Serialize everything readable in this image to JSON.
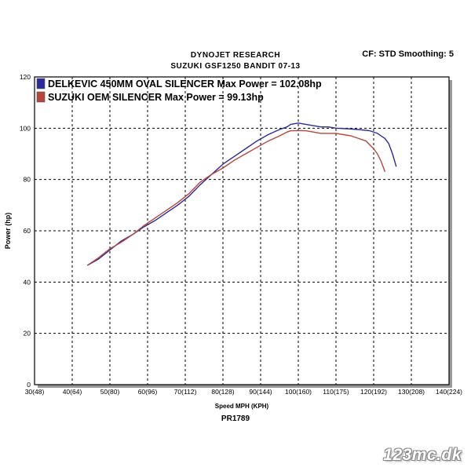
{
  "header": {
    "title": "DYNOJET RESEARCH",
    "subtitle": "SUZUKI GSF1250 BANDIT 07-13",
    "settings": "CF: STD  Smoothing: 5"
  },
  "footer": {
    "run_id": "PR1789",
    "watermark": "123mc.dk"
  },
  "colors": {
    "series_blue": "#2a2a9c",
    "series_red": "#b8453a",
    "grid": "#000000"
  },
  "chart_data": {
    "type": "line",
    "xlabel": "Speed MPH (KPH)",
    "ylabel": "Power (hp)",
    "xlim": [
      30,
      140
    ],
    "ylim": [
      0,
      120
    ],
    "x_ticks": [
      {
        "value": 30,
        "label": "30(48)"
      },
      {
        "value": 40,
        "label": "40(64)"
      },
      {
        "value": 50,
        "label": "50(80)"
      },
      {
        "value": 60,
        "label": "60(96)"
      },
      {
        "value": 70,
        "label": "70(112)"
      },
      {
        "value": 80,
        "label": "80(128)"
      },
      {
        "value": 90,
        "label": "90(144)"
      },
      {
        "value": 100,
        "label": "100(160)"
      },
      {
        "value": 110,
        "label": "110(175)"
      },
      {
        "value": 120,
        "label": "120(192)"
      },
      {
        "value": 130,
        "label": "130(208)"
      },
      {
        "value": 140,
        "label": "140(224)"
      }
    ],
    "y_ticks": [
      0,
      20,
      40,
      60,
      80,
      100,
      120
    ],
    "grid": true,
    "legend_position": "top-left",
    "series": [
      {
        "name": "DELKEVIC 450MM OVAL SILENCER Max Power  = 102.08hp",
        "color": "#2a2a9c",
        "x": [
          44,
          47,
          50,
          53,
          56,
          59,
          62,
          65,
          68,
          71,
          74,
          77,
          80,
          83,
          86,
          89,
          92,
          95,
          97,
          98,
          100,
          102,
          104,
          106,
          108,
          110,
          113,
          116,
          119,
          121,
          123,
          124,
          125,
          126
        ],
        "y": [
          46.5,
          49,
          52.5,
          56,
          58.5,
          61.5,
          64,
          67,
          70,
          73.5,
          78,
          82,
          86,
          89,
          92,
          95,
          97.5,
          99.5,
          100.5,
          101.5,
          102,
          101.5,
          101,
          100.5,
          100.5,
          100,
          99.8,
          99.5,
          99,
          98,
          96,
          94,
          90,
          85
        ]
      },
      {
        "name": "SUZUKI OEM SILENCER Max Power = 99.13hp",
        "color": "#b8453a",
        "x": [
          44,
          47,
          50,
          53,
          56,
          59,
          62,
          65,
          68,
          71,
          74,
          77,
          80,
          83,
          86,
          89,
          92,
          95,
          97,
          98,
          100,
          102,
          104,
          106,
          108,
          110,
          112,
          114,
          116,
          118,
          119,
          120,
          121,
          122,
          123
        ],
        "y": [
          46.5,
          49.5,
          53,
          55.5,
          58.5,
          62,
          65,
          68,
          71,
          74.5,
          79,
          82,
          84.5,
          87.5,
          90,
          92.5,
          95,
          97,
          98.5,
          99,
          99.1,
          99,
          98.5,
          98,
          98,
          98,
          97.5,
          97,
          96,
          95,
          93.5,
          92,
          90,
          87,
          83
        ]
      }
    ]
  }
}
